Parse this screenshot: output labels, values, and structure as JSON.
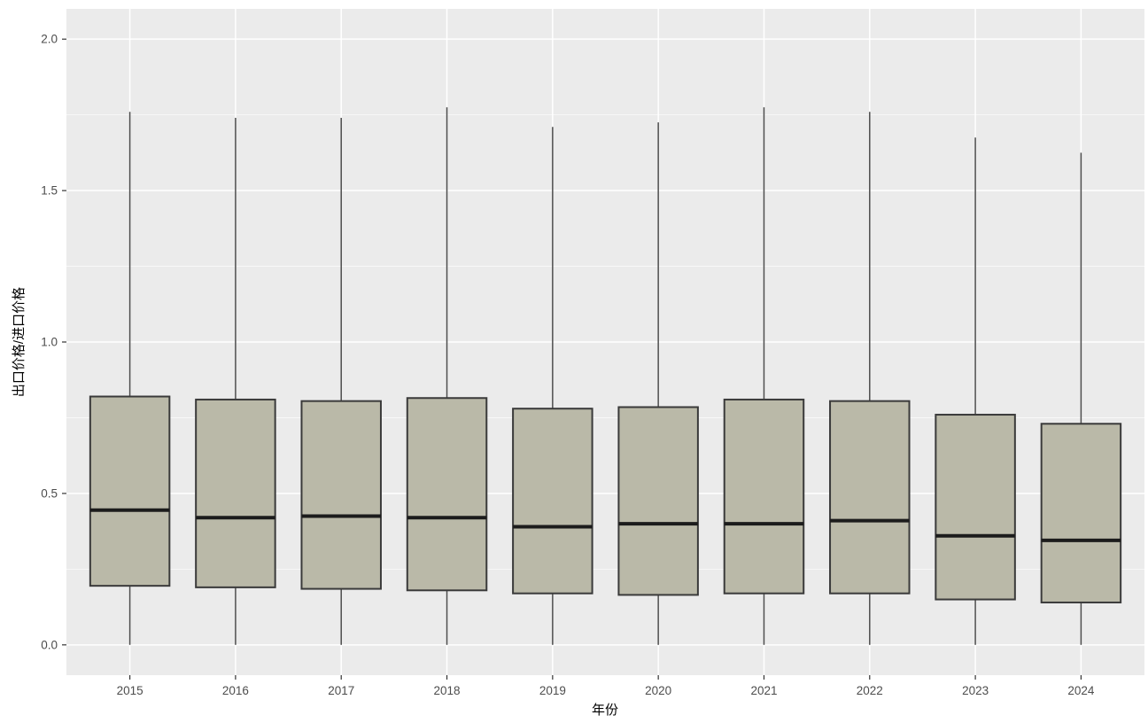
{
  "chart_data": {
    "type": "boxplot",
    "title": "",
    "xlabel": "年份",
    "ylabel": "出口价格/进口价格",
    "categories": [
      "2015",
      "2016",
      "2017",
      "2018",
      "2019",
      "2020",
      "2021",
      "2022",
      "2023",
      "2024"
    ],
    "y_ticks": [
      0.0,
      0.5,
      1.0,
      1.5,
      2.0
    ],
    "y_tick_labels": [
      "0.0",
      "0.5",
      "1.0",
      "1.5",
      "2.0"
    ],
    "y_minor_ticks": [
      0.25,
      0.75,
      1.25,
      1.75
    ],
    "ylim": [
      -0.1,
      2.1
    ],
    "grid": true,
    "legend_position": "none",
    "boxes": [
      {
        "category": "2015",
        "min": 0.0,
        "q1": 0.195,
        "median": 0.445,
        "q3": 0.82,
        "max": 1.76
      },
      {
        "category": "2016",
        "min": 0.0,
        "q1": 0.19,
        "median": 0.42,
        "q3": 0.81,
        "max": 1.74
      },
      {
        "category": "2017",
        "min": 0.0,
        "q1": 0.185,
        "median": 0.425,
        "q3": 0.805,
        "max": 1.74
      },
      {
        "category": "2018",
        "min": 0.0,
        "q1": 0.18,
        "median": 0.42,
        "q3": 0.815,
        "max": 1.775
      },
      {
        "category": "2019",
        "min": 0.0,
        "q1": 0.17,
        "median": 0.39,
        "q3": 0.78,
        "max": 1.71
      },
      {
        "category": "2020",
        "min": 0.0,
        "q1": 0.165,
        "median": 0.4,
        "q3": 0.785,
        "max": 1.725
      },
      {
        "category": "2021",
        "min": 0.0,
        "q1": 0.17,
        "median": 0.4,
        "q3": 0.81,
        "max": 1.775
      },
      {
        "category": "2022",
        "min": 0.0,
        "q1": 0.17,
        "median": 0.41,
        "q3": 0.805,
        "max": 1.76
      },
      {
        "category": "2023",
        "min": 0.0,
        "q1": 0.15,
        "median": 0.36,
        "q3": 0.76,
        "max": 1.675
      },
      {
        "category": "2024",
        "min": 0.0,
        "q1": 0.14,
        "median": 0.345,
        "q3": 0.73,
        "max": 1.625
      }
    ]
  },
  "style": {
    "page_background": "#ffffff",
    "panel_background": "#EBEBEB",
    "grid_major_color": "#FFFFFF",
    "grid_minor_color": "#FFFFFF",
    "box_fill": "#BAB9A8",
    "box_border": "#3A3A3A",
    "median_color": "#1C1C1C",
    "whisker_color": "#4D4D4D",
    "tick_mark_color": "#333333",
    "tick_label_color": "#4D4D4D",
    "axis_title_color": "#000000"
  }
}
